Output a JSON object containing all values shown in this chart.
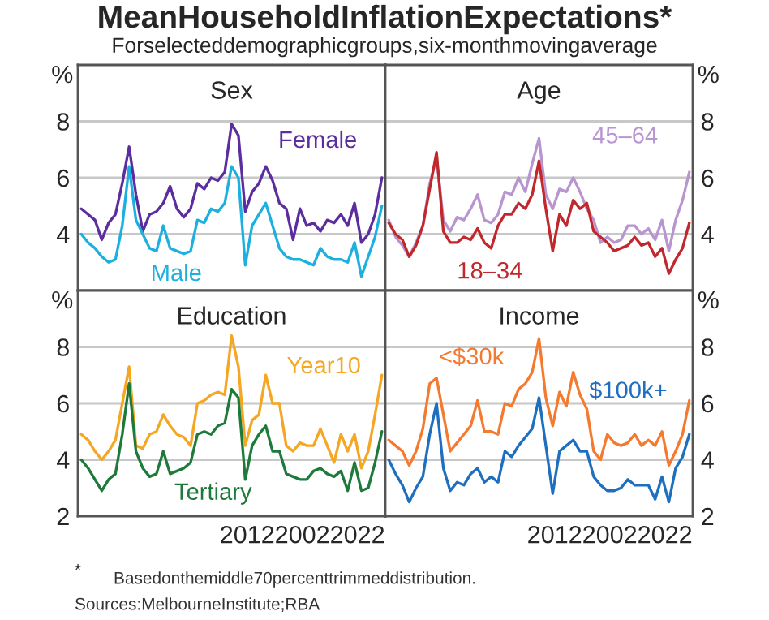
{
  "chart_data": [
    {
      "type": "other",
      "title": "MeanHouseholdInflationExpectations*",
      "subtitle": "Forselecteddemographicgroups,six-monthmovingaverage",
      "annotations": [
        "*",
        "Basedonthemiddle70percenttrimmeddistribution.",
        "Sources:MelbourneInstitute;RBA"
      ]
    },
    {
      "type": "line",
      "title": "Sex",
      "ylabel": "%",
      "ylim": [
        2,
        10
      ],
      "yticks": [
        4,
        6,
        8
      ],
      "grid": "y",
      "legend": false,
      "tick_labels": "y",
      "categories": [
        null,
        null,
        null,
        null,
        null,
        null,
        null,
        null,
        null,
        null,
        null,
        null,
        null,
        null,
        null,
        null,
        null,
        null,
        null,
        null,
        null,
        null,
        null,
        null,
        null,
        null,
        null,
        null,
        null,
        null,
        null,
        null,
        null,
        null,
        null,
        null,
        null,
        null,
        null,
        null,
        null,
        null,
        null,
        null,
        null
      ],
      "series": [
        {
          "name": "Female",
          "color": "#5b2d9e",
          "values": [
            4.9,
            4.7,
            4.5,
            3.8,
            4.4,
            4.7,
            5.8,
            7.1,
            5.4,
            4.1,
            4.7,
            4.8,
            5.1,
            5.7,
            4.9,
            4.6,
            4.9,
            5.8,
            5.6,
            6.0,
            5.9,
            6.2,
            7.9,
            7.5,
            4.8,
            5.5,
            5.8,
            6.4,
            5.9,
            5.1,
            4.9,
            3.8,
            4.9,
            4.3,
            4.4,
            4.1,
            4.5,
            4.4,
            4.7,
            4.3,
            5.1,
            3.7,
            4.0,
            4.7,
            6.0
          ]
        },
        {
          "name": "Male",
          "color": "#1cb0e0",
          "values": [
            4.0,
            3.7,
            3.5,
            3.2,
            3.0,
            3.1,
            4.3,
            6.4,
            4.5,
            4.0,
            3.5,
            3.4,
            4.3,
            3.5,
            3.4,
            3.3,
            3.4,
            4.5,
            4.4,
            4.9,
            4.8,
            5.1,
            6.4,
            6.0,
            2.9,
            4.3,
            4.7,
            5.1,
            4.3,
            3.5,
            3.2,
            3.1,
            3.1,
            3.0,
            2.9,
            3.5,
            3.2,
            3.1,
            3.1,
            3.0,
            3.7,
            2.5,
            3.2,
            3.9,
            5.0
          ]
        }
      ]
    },
    {
      "type": "line",
      "title": "Age",
      "ylabel": "%",
      "ylim": [
        2,
        10
      ],
      "yticks": [
        4,
        6,
        8
      ],
      "grid": "y",
      "legend": false,
      "tick_labels": "y",
      "categories": [
        null,
        null,
        null,
        null,
        null,
        null,
        null,
        null,
        null,
        null,
        null,
        null,
        null,
        null,
        null,
        null,
        null,
        null,
        null,
        null,
        null,
        null,
        null,
        null,
        null,
        null,
        null,
        null,
        null,
        null,
        null,
        null,
        null,
        null,
        null,
        null,
        null,
        null,
        null,
        null,
        null,
        null,
        null,
        null,
        null
      ],
      "series": [
        {
          "name": "45–64",
          "color": "#b895d0",
          "values": [
            4.5,
            3.9,
            3.6,
            3.2,
            3.7,
            4.3,
            5.8,
            6.7,
            4.5,
            4.1,
            4.6,
            4.5,
            4.9,
            5.4,
            4.5,
            4.4,
            4.7,
            5.5,
            5.4,
            6.0,
            5.5,
            6.5,
            7.4,
            5.4,
            4.9,
            5.6,
            5.5,
            6.0,
            5.5,
            4.9,
            4.5,
            3.7,
            3.9,
            3.7,
            3.8,
            4.3,
            4.3,
            4.0,
            4.2,
            3.8,
            4.5,
            3.4,
            4.5,
            5.2,
            6.2
          ]
        },
        {
          "name": "18–34",
          "color": "#c0282d",
          "values": [
            4.4,
            4.0,
            3.8,
            3.2,
            3.6,
            4.3,
            5.6,
            6.9,
            4.1,
            3.7,
            3.7,
            3.9,
            3.8,
            4.2,
            3.7,
            3.5,
            4.3,
            4.7,
            4.7,
            5.1,
            4.9,
            5.4,
            6.6,
            4.9,
            3.4,
            4.7,
            4.3,
            5.2,
            4.9,
            5.1,
            4.1,
            3.9,
            3.7,
            3.4,
            3.5,
            3.6,
            3.9,
            3.6,
            3.7,
            3.2,
            3.5,
            2.6,
            3.1,
            3.5,
            4.4
          ]
        }
      ]
    },
    {
      "type": "line",
      "title": "Education",
      "ylabel": "%",
      "ylim": [
        2,
        10
      ],
      "yticks": [
        2,
        4,
        6,
        8
      ],
      "grid": "y",
      "legend": false,
      "annotations": [
        "201220022022"
      ],
      "categories": [
        null,
        null,
        null,
        null,
        null,
        null,
        null,
        null,
        null,
        null,
        null,
        null,
        null,
        null,
        null,
        null,
        null,
        null,
        null,
        null,
        null,
        null,
        null,
        null,
        null,
        null,
        null,
        null,
        null,
        null,
        null,
        null,
        null,
        null,
        null,
        null,
        null,
        null,
        null,
        null,
        null,
        null,
        null,
        null,
        null
      ],
      "series": [
        {
          "name": "Year10",
          "color": "#f5a623",
          "values": [
            4.9,
            4.7,
            4.3,
            4.0,
            4.3,
            4.7,
            6.0,
            7.3,
            4.5,
            4.4,
            4.9,
            5.0,
            5.6,
            5.2,
            4.9,
            4.8,
            4.5,
            6.0,
            6.1,
            6.3,
            6.4,
            6.3,
            8.4,
            7.3,
            4.5,
            5.4,
            5.6,
            7.0,
            6.0,
            6.0,
            4.5,
            4.3,
            4.6,
            4.5,
            4.5,
            5.1,
            4.5,
            3.9,
            4.9,
            4.3,
            4.9,
            3.7,
            4.3,
            5.6,
            7.0
          ]
        },
        {
          "name": "Tertiary",
          "color": "#1e7a3a",
          "values": [
            4.0,
            3.7,
            3.3,
            2.9,
            3.3,
            3.5,
            4.9,
            6.7,
            4.3,
            3.7,
            3.4,
            3.5,
            4.3,
            3.5,
            3.6,
            3.7,
            3.9,
            4.9,
            5.0,
            4.9,
            5.2,
            5.3,
            6.5,
            6.2,
            3.3,
            4.5,
            4.9,
            5.2,
            4.3,
            4.3,
            3.5,
            3.4,
            3.3,
            3.3,
            3.6,
            3.7,
            3.5,
            3.4,
            3.6,
            2.9,
            3.9,
            2.9,
            3.0,
            3.9,
            5.0
          ]
        }
      ]
    },
    {
      "type": "line",
      "title": "Income",
      "ylabel": "%",
      "ylim": [
        2,
        10
      ],
      "yticks": [
        2,
        4,
        6,
        8
      ],
      "grid": "y",
      "legend": false,
      "annotations": [
        "201220022022"
      ],
      "categories": [
        null,
        null,
        null,
        null,
        null,
        null,
        null,
        null,
        null,
        null,
        null,
        null,
        null,
        null,
        null,
        null,
        null,
        null,
        null,
        null,
        null,
        null,
        null,
        null,
        null,
        null,
        null,
        null,
        null,
        null,
        null,
        null,
        null,
        null,
        null,
        null,
        null,
        null,
        null,
        null,
        null,
        null,
        null,
        null,
        null
      ],
      "series": [
        {
          "name": "$100k+",
          "color": "#1f6fc0",
          "values": [
            4.0,
            3.5,
            3.1,
            2.5,
            3.0,
            3.4,
            4.9,
            6.0,
            3.7,
            2.9,
            3.2,
            3.1,
            3.5,
            3.7,
            3.2,
            3.4,
            3.2,
            4.3,
            4.1,
            4.5,
            4.8,
            5.1,
            6.2,
            4.5,
            2.8,
            4.3,
            4.5,
            4.7,
            4.3,
            4.3,
            3.4,
            3.1,
            2.9,
            2.9,
            3.0,
            3.3,
            3.1,
            3.1,
            3.1,
            2.6,
            3.4,
            2.5,
            3.7,
            4.1,
            4.9
          ]
        },
        {
          "name": "<$30k",
          "color": "#f47a30",
          "values": [
            4.7,
            4.5,
            4.3,
            3.8,
            4.3,
            5.1,
            6.7,
            6.9,
            5.6,
            4.3,
            4.6,
            4.9,
            5.2,
            6.1,
            5.0,
            5.0,
            4.9,
            6.0,
            5.9,
            6.5,
            6.7,
            7.1,
            8.3,
            6.2,
            5.2,
            6.4,
            5.9,
            7.1,
            6.3,
            5.8,
            4.3,
            4.0,
            4.9,
            4.6,
            4.5,
            4.6,
            4.9,
            4.5,
            4.7,
            4.5,
            5.0,
            3.8,
            4.3,
            4.9,
            6.1
          ]
        }
      ]
    }
  ]
}
